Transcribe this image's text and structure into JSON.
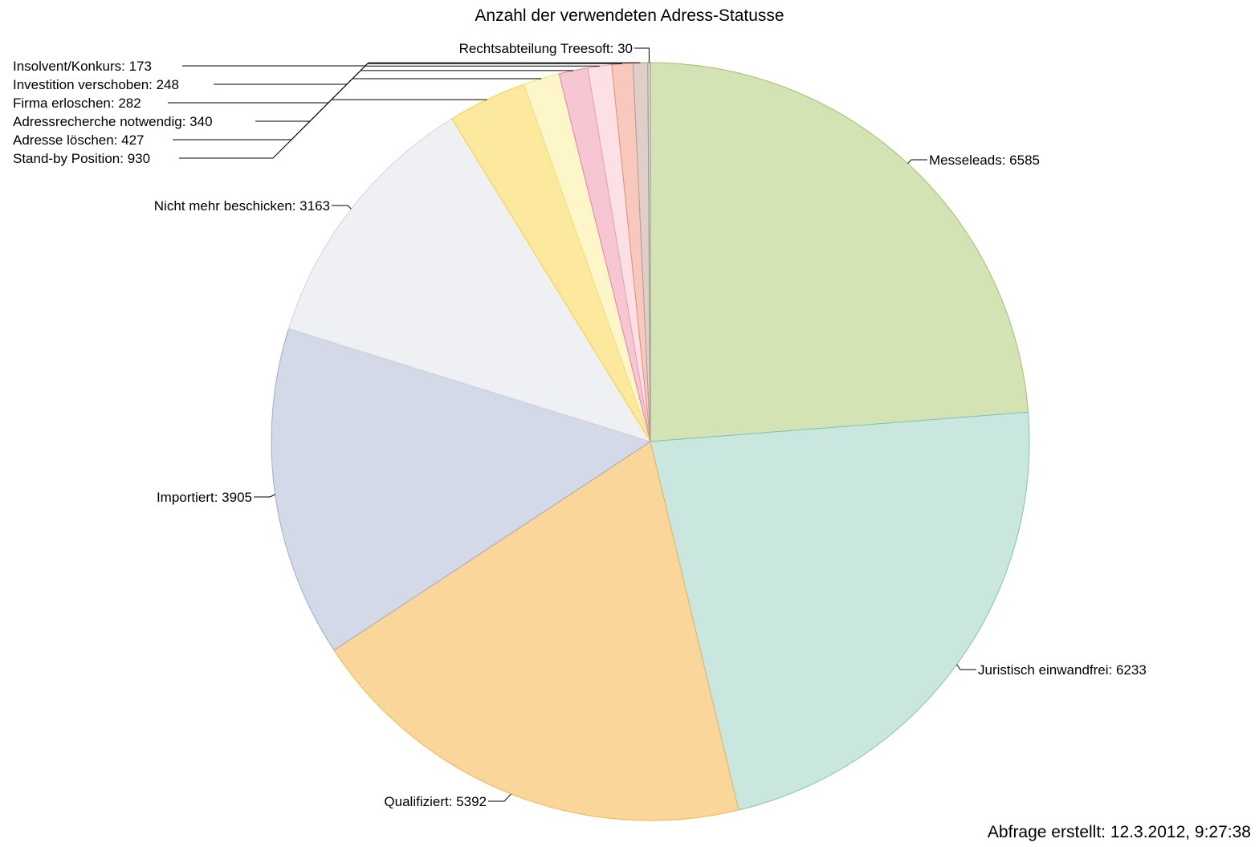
{
  "chart_data": {
    "type": "pie",
    "title": "Anzahl der verwendeten Adress-Statusse",
    "slices": [
      {
        "label": "Messeleads",
        "value": 6585,
        "color": "#d4e3b4",
        "stroke": "#a3c06a"
      },
      {
        "label": "Juristisch einwandfrei",
        "value": 6233,
        "color": "#c9e6df",
        "stroke": "#7fc4b3"
      },
      {
        "label": "Qualifiziert",
        "value": 5392,
        "color": "#fbd69a",
        "stroke": "#f4b24a"
      },
      {
        "label": "Importiert",
        "value": 3905,
        "color": "#d4d9e8",
        "stroke": "#a2aac9"
      },
      {
        "label": "Nicht mehr beschicken",
        "value": 3163,
        "color": "#eef0f4",
        "stroke": "#d0d4dc"
      },
      {
        "label": "Stand-by Position",
        "value": 930,
        "color": "#fde99d",
        "stroke": "#f3d040"
      },
      {
        "label": "Adresse löschen",
        "value": 427,
        "color": "#fdf6c8",
        "stroke": "#efe07a"
      },
      {
        "label": "Adressrecherche notwendig",
        "value": 340,
        "color": "#f6c7d2",
        "stroke": "#e4849a"
      },
      {
        "label": "Firma erloschen",
        "value": 282,
        "color": "#fbe0e6",
        "stroke": "#eaa2b3"
      },
      {
        "label": "Investition verschoben",
        "value": 248,
        "color": "#f8c8bc",
        "stroke": "#e98e76"
      },
      {
        "label": "Insolvent/Konkurs",
        "value": 173,
        "color": "#e0cfc8",
        "stroke": "#b89c92"
      },
      {
        "label": "Rechtsabteilung Treesoft",
        "value": 30,
        "color": "#dcd8d4",
        "stroke": "#999999"
      }
    ]
  },
  "footer": {
    "text": "Abfrage erstellt: 12.3.2012, 9:27:38"
  }
}
